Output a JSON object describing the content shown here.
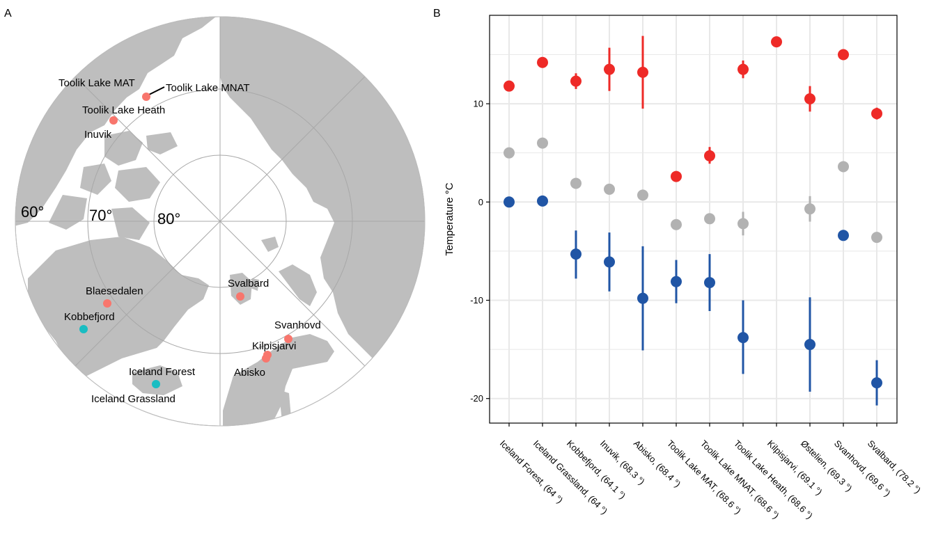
{
  "panel_a": {
    "label": "A",
    "latitude_labels": [
      "60°",
      "70°",
      "80°"
    ],
    "sites": [
      {
        "name": "Toolik Lake MAT",
        "group": "pink"
      },
      {
        "name": "Toolik Lake MNAT",
        "group": "pink"
      },
      {
        "name": "Toolik Lake Heath",
        "group": "pink"
      },
      {
        "name": "Inuvik",
        "group": "pink"
      },
      {
        "name": "Blaesedalen",
        "group": "pink"
      },
      {
        "name": "Kobbefjord",
        "group": "teal"
      },
      {
        "name": "Iceland Forest",
        "group": "teal"
      },
      {
        "name": "Iceland Grassland",
        "group": "teal"
      },
      {
        "name": "Svalbard",
        "group": "pink"
      },
      {
        "name": "Svanhovd",
        "group": "pink"
      },
      {
        "name": "Kilpisjarvi",
        "group": "pink"
      },
      {
        "name": "Abisko",
        "group": "pink"
      }
    ],
    "colors": {
      "pink": "#f8766d",
      "teal": "#19bdc2",
      "land": "#bebebe",
      "ocean": "#ffffff"
    }
  },
  "chart_data": {
    "type": "scatter",
    "panel_label": "B",
    "ylabel": "Temperature °C",
    "ylim": [
      -22.5,
      19
    ],
    "yticks": [
      -20,
      -10,
      0,
      10
    ],
    "categories": [
      "Iceland Forest, (64 °)",
      "Iceland Grassland, (64 °)",
      "Kobbefjord, (64.1 °)",
      "Inuvik, (68.3 °)",
      "Abisko, (68.4 °)",
      "Toolik Lake MAT, (68.6 °)",
      "Toolik Lake MNAT, (68.6 °)",
      "Toolik Lake Heath, (68.6 °)",
      "Kilpisjarvi, (69.1 °)",
      "Østelien, (69.3 °)",
      "Svanhovd, (69.6 °)",
      "Svalbard, (78.2 °)"
    ],
    "series": [
      {
        "color": "#ee2a27",
        "values": [
          11.8,
          14.2,
          12.3,
          13.5,
          13.2,
          2.6,
          4.7,
          13.5,
          16.3,
          10.5,
          15.0,
          9.0
        ],
        "lower": [
          11.8,
          14.2,
          11.5,
          11.3,
          9.5,
          2.6,
          3.9,
          12.6,
          16.3,
          9.2,
          15.0,
          8.4
        ],
        "upper": [
          11.8,
          14.2,
          13.1,
          15.7,
          16.9,
          2.6,
          5.6,
          14.4,
          16.3,
          11.8,
          15.0,
          9.6
        ]
      },
      {
        "color": "#b2b2b2",
        "values": [
          5.0,
          6.0,
          1.9,
          1.3,
          0.7,
          -2.3,
          -1.7,
          -2.2,
          null,
          -0.7,
          3.6,
          -3.6
        ],
        "lower": [
          5.0,
          6.0,
          1.9,
          1.3,
          0.7,
          -2.3,
          -1.7,
          -3.4,
          null,
          -2.0,
          3.6,
          -3.6
        ],
        "upper": [
          5.0,
          6.0,
          1.9,
          1.3,
          0.7,
          -2.3,
          -1.7,
          -1.0,
          null,
          0.6,
          3.6,
          -3.6
        ]
      },
      {
        "color": "#2055a5",
        "values": [
          0.0,
          0.1,
          -5.3,
          -6.1,
          -9.8,
          -8.1,
          -8.2,
          -13.8,
          null,
          -14.5,
          -3.4,
          -18.4
        ],
        "lower": [
          0.0,
          0.1,
          -7.8,
          -9.1,
          -15.1,
          -10.3,
          -11.1,
          -17.5,
          null,
          -19.3,
          -3.4,
          -20.7
        ],
        "upper": [
          0.0,
          0.1,
          -2.9,
          -3.1,
          -4.5,
          -5.9,
          -5.3,
          -10.0,
          null,
          -9.7,
          -3.4,
          -16.1
        ]
      }
    ],
    "grid": true,
    "colors": {
      "panel_bg": "#ffffff",
      "grid": "#e8e8e8",
      "border": "#000000"
    }
  }
}
